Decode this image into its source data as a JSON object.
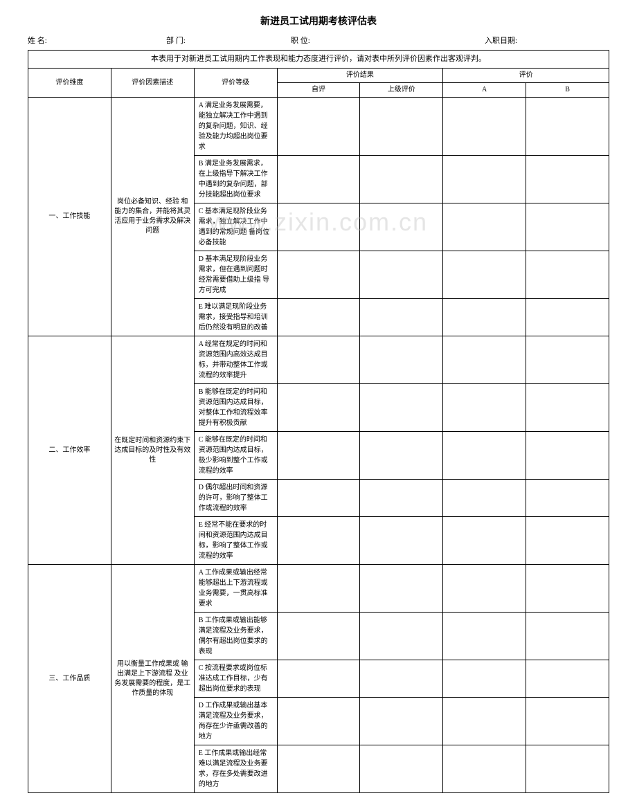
{
  "title": "新进员工试用期考核评估表",
  "header": {
    "name_label": "姓 名:",
    "dept_label": "部 门:",
    "position_label": "职 位:",
    "hiredate_label": "入职日期:"
  },
  "instruction": "本表用于对新进员工试用期内工作表现和能力态度进行评价，请对表中所列评价因素作出客观评判。",
  "columns": {
    "dimension": "评价维度",
    "factor_desc": "评价因素描述",
    "level": "评价等级",
    "result": "评价结果",
    "self_eval": "自评",
    "supervisor_eval": "上级评价",
    "score_header": "评价",
    "grade_a": "A",
    "grade_b": "B"
  },
  "sections": [
    {
      "dimension": "一、工作技能",
      "factor_desc": "岗位必备知识、经验 和能力的集合，并能将其灵活应用于业务需求及解决问题",
      "levels": [
        "A 满足业务发展需要，能独立解决工作中遇到的复杂问题，知识、经验及能力均超出岗位要求",
        "B 满足业务发展需求，在上级指导下解决工作中遇到的复杂问题，部分技能超出岗位要求",
        "C 基本满足现阶段业务需求，独立解决工作中遇到的常规问题 备岗位必备技能",
        "D 基本满足现阶段业务需求，但在遇到问题时经常需要借助上级指 导方可完成",
        "E 难以满足现阶段业务需求，接受指导和培训后仍然没有明显的改善"
      ]
    },
    {
      "dimension": "二、工作效率",
      "factor_desc": "在既定时间和资源约束下达成目标的及时性及有效性",
      "levels": [
        "A 经常在规定的时间和资源范围内高效达成目标，并带动整体工作或流程的效率提升",
        "B 能够在既定的时间和资源范围内达成目标，对整体工作和流程效率提升有积极贡献",
        "C 能够在既定的时间和资源范围内达成目标，极少影响到整个工作或流程的效率",
        "D 偶尔超出时间和资源的许可，影响了整体工作或流程的效率",
        "E 经常不能在要求的时间和资源范围内达成目标，影响了整体工作或流程的效率"
      ]
    },
    {
      "dimension": "三、工作品质",
      "factor_desc": "用以衡量工作成果或 输出满足上下游流程 及业务发展需要的程度，是工作质量的体现",
      "levels": [
        "A 工作成果或输出经常能够超出上下游流程或业务需要，一贯高标准要求",
        "B 工作成果或输出能够满足流程及业务要求，偶尔有超出岗位要求的表现",
        "C 按流程要求或岗位标准达成工作目标，少有超出岗位要求的表现",
        "D 工作成果或输出基本满足流程及业务要求，尚存在少许亟需改善的地方",
        "E 工作成果或输出经常难以满足流程及业务要求，存在多处需要改进的地方"
      ]
    }
  ],
  "watermark": "www.zixin.com.cn",
  "colors": {
    "text": "#000000",
    "border": "#000000",
    "background": "#ffffff",
    "watermark": "rgba(180,180,180,0.35)"
  }
}
